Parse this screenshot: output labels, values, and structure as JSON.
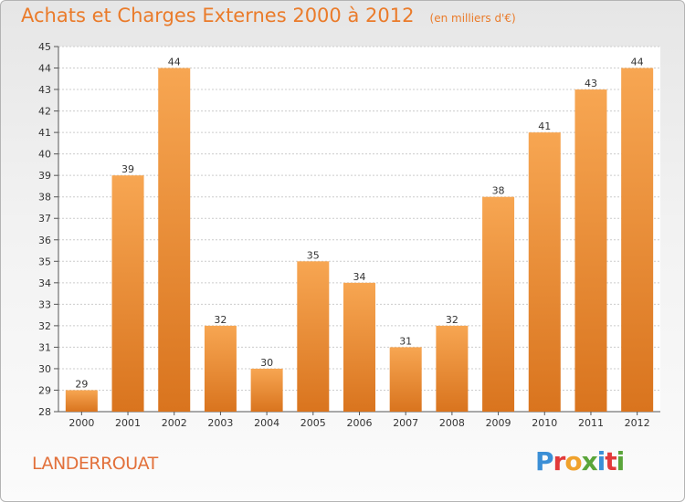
{
  "header": {
    "title": "Achats et Charges Externes 2000 à 2012",
    "subtitle": "(en milliers d'€)"
  },
  "commune": "LANDERROUAT",
  "logo": {
    "text": "Proxiti",
    "letter_colors": [
      "#3b8fd6",
      "#e23a3a",
      "#f0a22c",
      "#5aa53a",
      "#3b8fd6",
      "#e23a3a",
      "#5aa53a"
    ]
  },
  "colors": {
    "bar_top": "#f7a652",
    "bar_bottom": "#d9741e",
    "title": "#ea7b2a",
    "grid": "#cccccc"
  },
  "chart_data": {
    "type": "bar",
    "title": "Achats et Charges Externes 2000 à 2012",
    "subtitle": "(en milliers d'€)",
    "xlabel": "",
    "ylabel": "",
    "categories": [
      "2000",
      "2001",
      "2002",
      "2003",
      "2004",
      "2005",
      "2006",
      "2007",
      "2008",
      "2009",
      "2010",
      "2011",
      "2012"
    ],
    "values": [
      29,
      39,
      44,
      32,
      30,
      35,
      34,
      31,
      32,
      38,
      41,
      43,
      44
    ],
    "ylim": [
      28,
      45
    ],
    "yticks": [
      28,
      29,
      30,
      31,
      32,
      33,
      34,
      35,
      36,
      37,
      38,
      39,
      40,
      41,
      42,
      43,
      44,
      45
    ],
    "grid": true
  }
}
